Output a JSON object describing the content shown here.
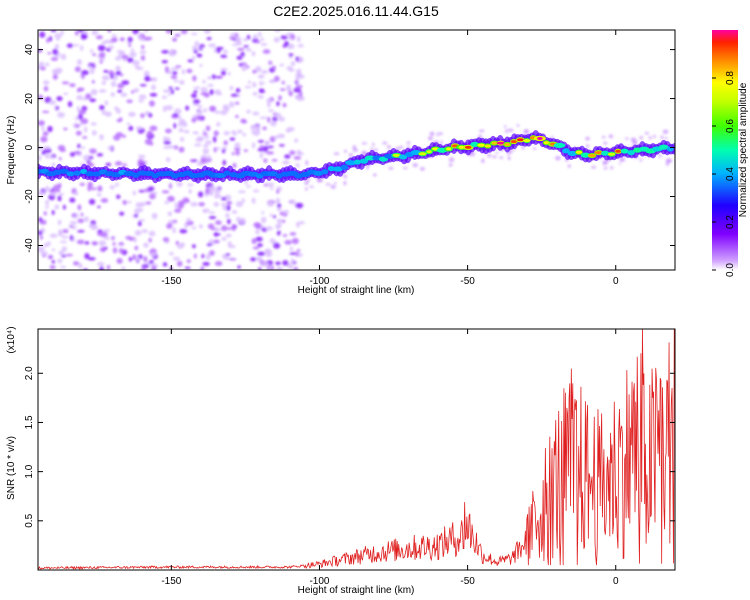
{
  "figure": {
    "title": "C2E2.2025.016.11.44.G15"
  },
  "chart_data": [
    {
      "type": "heatmap",
      "title": "C2E2.2025.016.11.44.G15",
      "xlabel": "Height of straight line (km)",
      "ylabel": "Frequency (Hz)",
      "xlim": [
        -195,
        20
      ],
      "ylim": [
        -50,
        48
      ],
      "xticks": [
        -150,
        -100,
        -50,
        0
      ],
      "yticks": [
        -40,
        -20,
        0,
        20,
        40
      ],
      "colorbar": {
        "label": "Normalized spectral amplitude",
        "range": [
          0.0,
          1.0
        ],
        "ticks": [
          0.0,
          0.2,
          0.4,
          0.6,
          0.8
        ],
        "colormap": [
          "#ff00ff",
          "#8000ff",
          "#0000ff",
          "#00c0ff",
          "#00ff80",
          "#80ff00",
          "#ffff00",
          "#ff8000",
          "#ff0000"
        ]
      },
      "ridge": {
        "description_points_x": [
          -195,
          -150,
          -120,
          -105,
          -95,
          -85,
          -70,
          -55,
          -45,
          -35,
          -28,
          -22,
          -15,
          -10,
          0,
          10,
          20
        ],
        "frequency": [
          -10,
          -11,
          -11,
          -11,
          -9,
          -5,
          -3,
          0,
          1,
          2,
          4,
          2,
          -2,
          -3,
          -2,
          -1,
          0
        ],
        "amplitude": [
          0.5,
          0.45,
          0.45,
          0.4,
          0.5,
          0.6,
          0.7,
          0.8,
          0.85,
          0.9,
          0.95,
          0.8,
          0.7,
          0.8,
          0.85,
          0.8,
          0.75
        ]
      },
      "noise_region_x": [
        -195,
        -107
      ]
    },
    {
      "type": "line",
      "xlabel": "Height of straight line (km)",
      "ylabel": "SNR (10 * v/v)",
      "ylabel_exponent": "(x10⁴)",
      "xlim": [
        -195,
        20
      ],
      "ylim": [
        0,
        2.45
      ],
      "xticks": [
        -150,
        -100,
        -50,
        0
      ],
      "yticks": [
        0.5,
        1.0,
        1.5,
        2.0
      ],
      "line_color": "#e02020",
      "series_envelope": {
        "x": [
          -195,
          -150,
          -110,
          -100,
          -90,
          -80,
          -70,
          -60,
          -52,
          -50,
          -45,
          -40,
          -35,
          -30,
          -25,
          -20,
          -15,
          -10,
          -5,
          0,
          5,
          8,
          10,
          15,
          20
        ],
        "y": [
          0.02,
          0.03,
          0.03,
          0.06,
          0.12,
          0.18,
          0.22,
          0.25,
          0.35,
          0.45,
          0.15,
          0.08,
          0.12,
          0.3,
          0.65,
          0.9,
          1.1,
          0.95,
          0.85,
          1.0,
          1.2,
          1.3,
          1.0,
          1.25,
          1.35
        ]
      },
      "peaks": [
        {
          "x": -51,
          "y": 0.69
        },
        {
          "x": -13,
          "y": 2.17
        },
        {
          "x": 9,
          "y": 2.45
        },
        {
          "x": 15,
          "y": 1.95
        },
        {
          "x": 20,
          "y": 1.78
        }
      ]
    }
  ]
}
